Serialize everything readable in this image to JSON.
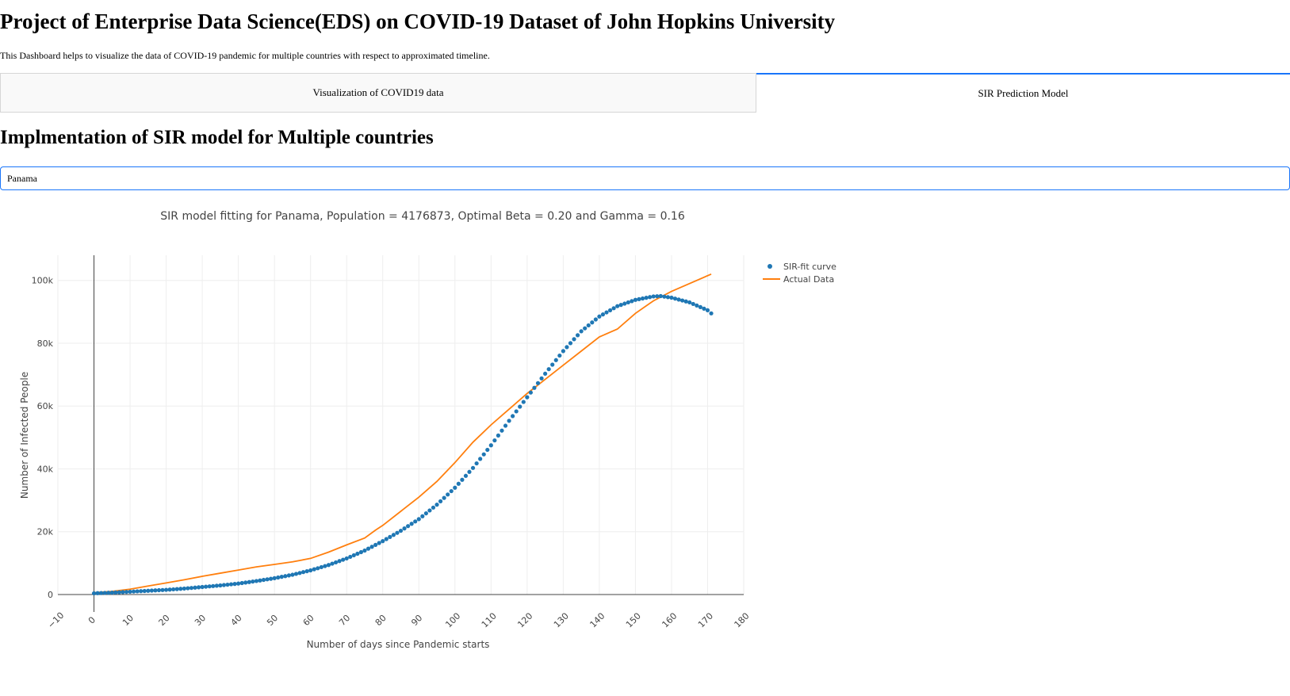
{
  "header": {
    "title": "Project of Enterprise Data Science(EDS) on COVID-19 Dataset of John Hopkins University",
    "description": "This Dashboard helps to visualize the data of COVID-19 pandemic for multiple countries with respect to approximated timeline."
  },
  "tabs": [
    {
      "label": "Visualization of COVID19 data",
      "active": false
    },
    {
      "label": "SIR Prediction Model",
      "active": true
    }
  ],
  "section": {
    "title": "Implmentation of SIR model for Multiple countries"
  },
  "country_input": {
    "value": "Panama"
  },
  "colors": {
    "fit": "#1f77b4",
    "actual": "#ff7f0e",
    "tab_accent": "#1975fa"
  },
  "chart_data": {
    "type": "scatter",
    "title": "SIR model fitting for Panama, Population = 4176873, Optimal Beta = 0.20 and Gamma = 0.16",
    "xlabel": "Number of days since Pandemic starts",
    "ylabel": "Number of Infected People",
    "xlim": [
      -10,
      180
    ],
    "ylim": [
      0,
      108000
    ],
    "x_ticks": [
      -10,
      0,
      10,
      20,
      30,
      40,
      50,
      60,
      70,
      80,
      90,
      100,
      110,
      120,
      130,
      140,
      150,
      160,
      170,
      180
    ],
    "y_ticks": [
      0,
      20000,
      40000,
      60000,
      80000,
      100000
    ],
    "y_tick_labels": [
      "0",
      "20k",
      "40k",
      "60k",
      "80k",
      "100k"
    ],
    "grid": true,
    "legend_position": "top-right",
    "series": [
      {
        "name": "SIR-fit curve",
        "mode": "markers",
        "x": [
          0,
          5,
          10,
          15,
          20,
          25,
          30,
          35,
          40,
          45,
          50,
          55,
          60,
          65,
          70,
          75,
          80,
          85,
          90,
          95,
          100,
          105,
          110,
          115,
          120,
          125,
          130,
          135,
          140,
          145,
          150,
          155,
          157,
          160,
          165,
          170,
          171
        ],
        "y": [
          400,
          600,
          900,
          1200,
          1500,
          1900,
          2400,
          2900,
          3500,
          4300,
          5200,
          6300,
          7700,
          9400,
          11500,
          14000,
          17000,
          20300,
          24000,
          28600,
          34000,
          40300,
          47500,
          55300,
          62800,
          70300,
          77500,
          83800,
          88500,
          91800,
          93800,
          94900,
          95000,
          94500,
          93000,
          90500,
          89500
        ]
      },
      {
        "name": "Actual Data",
        "mode": "lines",
        "x": [
          0,
          5,
          10,
          15,
          20,
          25,
          30,
          35,
          40,
          45,
          50,
          55,
          60,
          65,
          70,
          75,
          78,
          80,
          85,
          90,
          95,
          100,
          105,
          110,
          115,
          120,
          125,
          130,
          135,
          140,
          143,
          145,
          150,
          155,
          160,
          165,
          171
        ],
        "y": [
          600,
          1000,
          1700,
          2700,
          3700,
          4700,
          5800,
          6800,
          7800,
          8800,
          9600,
          10400,
          11500,
          13500,
          15800,
          18000,
          20500,
          22000,
          26500,
          31000,
          36000,
          42000,
          48500,
          54000,
          59000,
          64000,
          68500,
          73000,
          77500,
          82000,
          83500,
          84500,
          89500,
          93500,
          96500,
          99000,
          102000
        ]
      }
    ]
  }
}
